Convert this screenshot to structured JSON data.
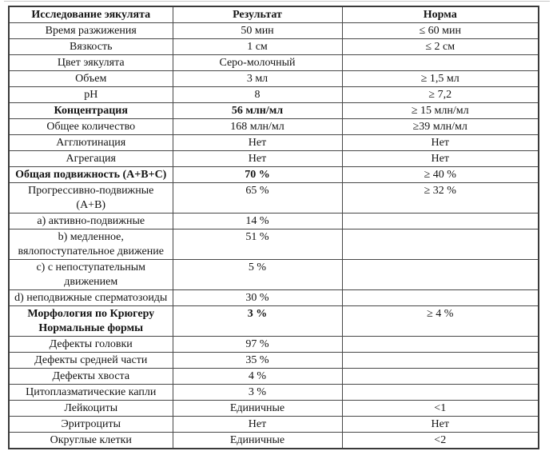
{
  "page": {
    "background": "#ffffff",
    "text_color": "#151515",
    "border_color": "#474747"
  },
  "chart_data": {
    "type": "table",
    "title": "Исследование эякулята"
  },
  "table": {
    "columns": [
      "Исследование эякулята",
      "Результат",
      "Норма"
    ],
    "rows": [
      {
        "param": "Время разжижения",
        "result": "50 мин",
        "norm": "≤ 60 мин",
        "bold": false
      },
      {
        "param": "Вязкость",
        "result": "1 см",
        "norm": "≤ 2 см",
        "bold": false
      },
      {
        "param": "Цвет эякулята",
        "result": "Серо-молочный",
        "norm": "",
        "bold": false
      },
      {
        "param": "Объем",
        "result": "3 мл",
        "norm": "≥ 1,5 мл",
        "bold": false
      },
      {
        "param": "pH",
        "result": "8",
        "norm": "≥ 7,2",
        "bold": false
      },
      {
        "param": "Концентрация",
        "result": "56 млн/мл",
        "norm": "≥ 15 млн/мл",
        "bold": true
      },
      {
        "param": "Общее количество",
        "result": "168 млн/мл",
        "norm": "≥39 млн/мл",
        "bold": false
      },
      {
        "param": "Агглютинация",
        "result": "Нет",
        "norm": "Нет",
        "bold": false
      },
      {
        "param": "Агрегация",
        "result": "Нет",
        "norm": "Нет",
        "bold": false
      },
      {
        "param": "Общая подвижность (А+В+С)",
        "result": "70 %",
        "norm": "≥ 40 %",
        "bold": true
      },
      {
        "param": "Прогрессивно-подвижные\n(А+В)",
        "result": "65 %",
        "norm": "≥ 32 %",
        "bold": false
      },
      {
        "param": "а) активно-подвижные",
        "result": "14 %",
        "norm": "",
        "bold": false
      },
      {
        "param": "b) медленное,\nвялопоступательное движение",
        "result": "51 %",
        "norm": "",
        "bold": false
      },
      {
        "param": "с) с непоступательным\nдвижением",
        "result": "5 %",
        "norm": "",
        "bold": false
      },
      {
        "param": "d) неподвижные сперматозоиды",
        "result": "30 %",
        "norm": "",
        "bold": false
      },
      {
        "param": "Морфология по Крюгеру\nНормальные формы",
        "result": "3 %",
        "norm": "≥ 4 %",
        "bold": true
      },
      {
        "param": "Дефекты головки",
        "result": "97 %",
        "norm": "",
        "bold": false
      },
      {
        "param": "Дефекты средней части",
        "result": "35 %",
        "norm": "",
        "bold": false
      },
      {
        "param": "Дефекты хвоста",
        "result": "4 %",
        "norm": "",
        "bold": false
      },
      {
        "param": "Цитоплазматические капли",
        "result": "3 %",
        "norm": "",
        "bold": false
      },
      {
        "param": "Лейкоциты",
        "result": "Единичные",
        "norm": "<1",
        "bold": false
      },
      {
        "param": "Эритроциты",
        "result": "Нет",
        "norm": "Нет",
        "bold": false
      },
      {
        "param": "Округлые клетки",
        "result": "Единичные",
        "norm": "<2",
        "bold": false
      }
    ]
  }
}
